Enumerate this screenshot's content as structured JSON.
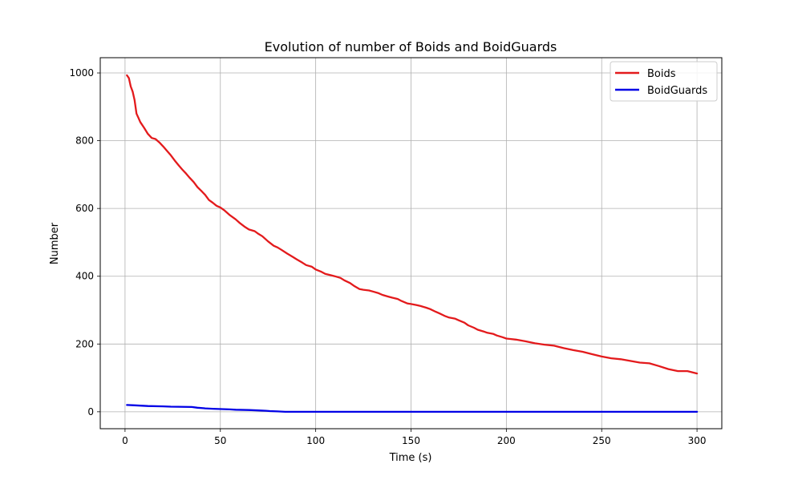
{
  "chart_data": {
    "type": "line",
    "title": "Evolution of number of Boids and BoidGuards",
    "xlabel": "Time (s)",
    "ylabel": "Number",
    "xlim": [
      -13,
      313
    ],
    "ylim": [
      -50,
      1045
    ],
    "xticks": [
      0,
      50,
      100,
      150,
      200,
      250,
      300
    ],
    "yticks": [
      0,
      200,
      400,
      600,
      800,
      1000
    ],
    "grid": true,
    "legend": "top-right",
    "series": [
      {
        "name": "Boids",
        "color": "#e31a1c",
        "x": [
          1,
          2,
          3,
          4,
          5,
          6,
          7,
          8,
          10,
          12,
          14,
          16,
          18,
          20,
          22,
          24,
          26,
          28,
          30,
          32,
          34,
          36,
          38,
          40,
          42,
          44,
          46,
          48,
          50,
          52,
          55,
          58,
          60,
          63,
          65,
          68,
          70,
          72,
          75,
          78,
          80,
          82,
          85,
          88,
          90,
          93,
          95,
          98,
          100,
          103,
          105,
          108,
          110,
          113,
          115,
          118,
          120,
          123,
          125,
          128,
          130,
          133,
          135,
          138,
          140,
          143,
          145,
          148,
          150,
          153,
          155,
          158,
          160,
          163,
          165,
          168,
          170,
          173,
          175,
          178,
          180,
          183,
          185,
          188,
          190,
          193,
          195,
          198,
          200,
          205,
          210,
          215,
          220,
          225,
          230,
          235,
          240,
          245,
          250,
          255,
          260,
          265,
          270,
          275,
          280,
          285,
          290,
          295,
          300
        ],
        "y": [
          993,
          985,
          960,
          945,
          920,
          880,
          868,
          855,
          838,
          820,
          808,
          805,
          795,
          783,
          770,
          757,
          742,
          728,
          715,
          703,
          690,
          678,
          663,
          652,
          640,
          625,
          617,
          608,
          603,
          595,
          580,
          568,
          558,
          545,
          538,
          533,
          525,
          518,
          503,
          490,
          485,
          478,
          467,
          457,
          450,
          440,
          433,
          428,
          420,
          413,
          407,
          403,
          400,
          395,
          388,
          380,
          372,
          362,
          360,
          358,
          355,
          350,
          345,
          340,
          337,
          333,
          327,
          320,
          318,
          315,
          312,
          307,
          303,
          295,
          290,
          282,
          278,
          275,
          270,
          263,
          255,
          248,
          242,
          237,
          233,
          230,
          225,
          220,
          216,
          213,
          208,
          202,
          198,
          195,
          188,
          182,
          177,
          170,
          163,
          158,
          155,
          150,
          145,
          143,
          135,
          126,
          120,
          120,
          113
        ]
      },
      {
        "name": "BoidGuards",
        "color": "#0000e6",
        "x": [
          1,
          5,
          8,
          12,
          20,
          24,
          35,
          38,
          42,
          46,
          55,
          58,
          65,
          70,
          74,
          76,
          80,
          84,
          90,
          100,
          150,
          200,
          250,
          300
        ],
        "y": [
          20,
          19,
          18,
          17,
          16,
          15,
          14,
          12,
          10,
          9,
          7,
          6,
          5,
          4,
          3,
          2,
          1,
          0,
          0,
          0,
          0,
          0,
          0,
          0
        ]
      }
    ]
  }
}
